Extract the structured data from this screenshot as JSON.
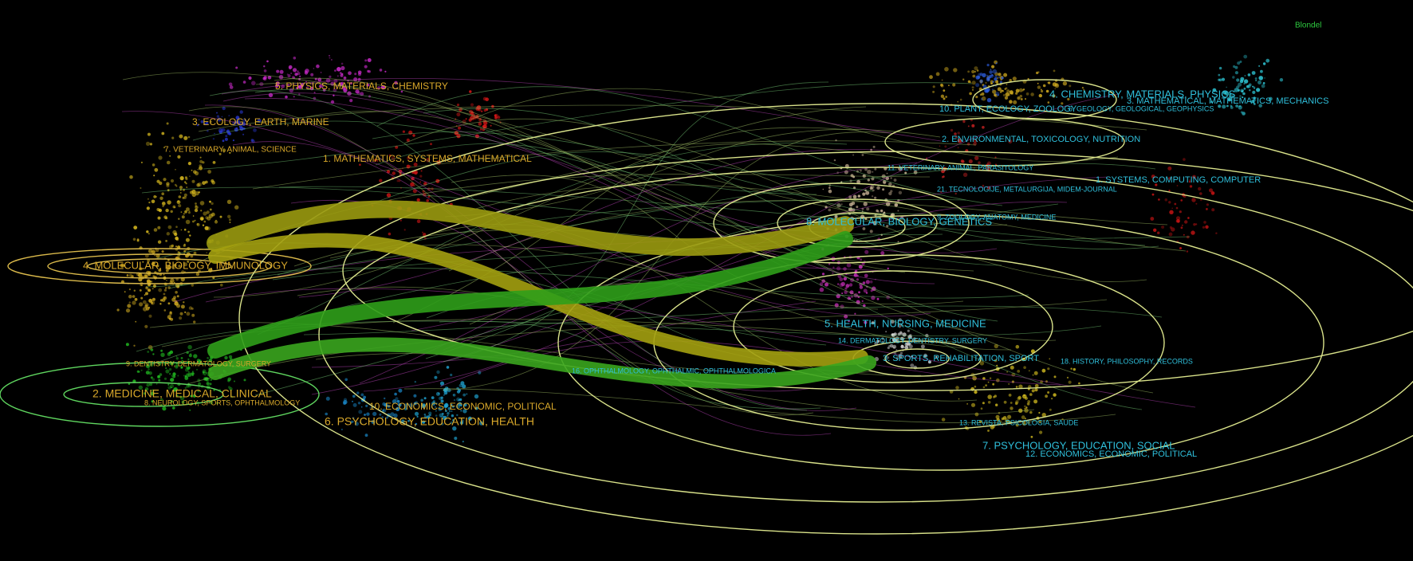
{
  "legend": "Blondel",
  "left_map": {
    "clusters": [
      "5. PHYSICS, MATERIALS, CHEMISTRY",
      "3. ECOLOGY, EARTH, MARINE",
      "7. VETERINARY, ANIMAL, SCIENCE",
      "1. MATHEMATICS, SYSTEMS, MATHEMATICAL",
      "4. MOLECULAR, BIOLOGY, IMMUNOLOGY",
      "9. DENTISTRY, DERMATOLOGY, SURGERY",
      "2. MEDICINE, MEDICAL, CLINICAL",
      "8. NEUROLOGY, SPORTS, OPHTHALMOLOGY",
      "10. ECONOMICS, ECONOMIC, POLITICAL",
      "6. PSYCHOLOGY, EDUCATION, HEALTH"
    ]
  },
  "right_map": {
    "clusters": [
      "4. CHEMISTRY, MATERIALS, PHYSICS",
      "3. MATHEMATICAL, MATHEMATICS, MECHANICS",
      "10. PLANT, ECOLOGY, ZOOLOGY",
      "6. GEOLOGY, GEOLOGICAL, GEOPHYSICS",
      "2. ENVIRONMENTAL, TOXICOLOGY, NUTRITION",
      "11. VETERINARY, ANIMAL, PARASITOLOGY",
      "1. SYSTEMS, COMPUTING, COMPUTER",
      "21. TECNOLOGIJE, METALURGIJA, MIDEM-JOURNAL",
      "9. ZOOLOGY, ANATOMY, MEDICINE",
      "8. MOLECULAR, BIOLOGY, GENETICS",
      "5. HEALTH, NURSING, MEDICINE",
      "14. DERMATOLOGY, DENTISTRY, SURGERY",
      "3. SPORTS, REHABILITATION, SPORT",
      "16. OPHTHALMOLOGY, OPHTHALMIC, OPHTHALMOLOGICA",
      "18. HISTORY, PHILOSOPHY, RECORDS",
      "13. REVISTA, PSICOLOGIA, SAUDE",
      "7. PSYCHOLOGY, EDUCATION, SOCIAL",
      "12. ECONOMICS, ECONOMIC, POLITICAL"
    ]
  }
}
